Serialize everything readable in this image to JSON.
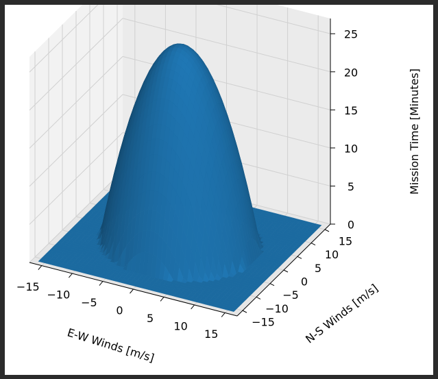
{
  "chart_data": {
    "type": "surface",
    "title": "",
    "xlabel": "E-W Winds [m/s]",
    "ylabel": "N-S Winds [m/s]",
    "zlabel": "Mission Time [Minutes]",
    "x_ticks": [
      "−15",
      "−10",
      "−5",
      "0",
      "5",
      "10",
      "15"
    ],
    "y_ticks": [
      "−15",
      "−10",
      "−5",
      "0",
      "5",
      "10",
      "15"
    ],
    "z_ticks": [
      "0",
      "5",
      "10",
      "15",
      "20",
      "25"
    ],
    "xlim": [
      -17,
      17
    ],
    "ylim": [
      -17,
      17
    ],
    "zlim": [
      0,
      27
    ],
    "surface": {
      "shape": "paraboloid",
      "peak_value": 26,
      "peak_at": [
        0,
        0
      ],
      "zero_radius": 12,
      "outside_value": 0
    },
    "grid": true,
    "color": "#1f77b4"
  }
}
